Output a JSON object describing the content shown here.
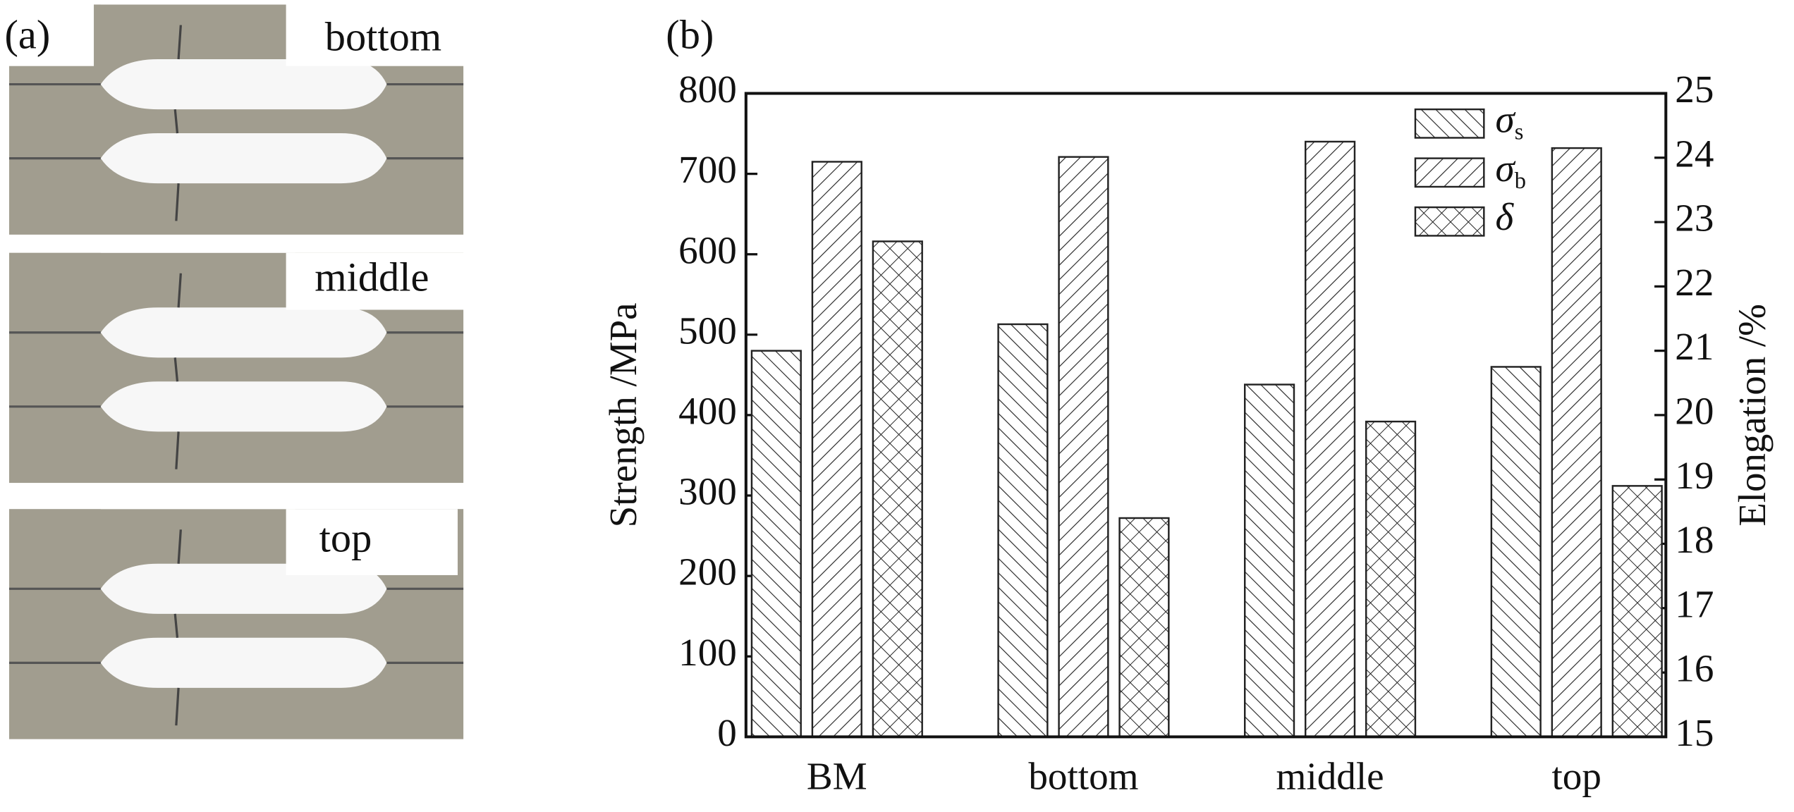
{
  "panel_a": {
    "label": "(a)",
    "photo_labels": [
      "bottom",
      "middle",
      "top"
    ]
  },
  "chart_data": {
    "type": "bar",
    "panel_label": "(b)",
    "categories": [
      "BM",
      "bottom",
      "middle",
      "top"
    ],
    "series": [
      {
        "name": "σs",
        "pattern": "backslash",
        "color": "#222222",
        "values": [
          480,
          513,
          438,
          460
        ]
      },
      {
        "name": "σb",
        "pattern": "slash",
        "color": "#222222",
        "values": [
          715,
          721,
          740,
          732
        ]
      },
      {
        "name": "δ",
        "pattern": "cross",
        "color": "#222222",
        "axis": "y2",
        "values": [
          22.7,
          18.4,
          19.9,
          18.9
        ]
      }
    ],
    "y_label": "Strength /MPa",
    "y2_label": "Elongation /%",
    "ylim": [
      0,
      800
    ],
    "yticks": [
      0,
      100,
      200,
      300,
      400,
      500,
      600,
      700,
      800
    ],
    "y2lim": [
      15,
      25
    ],
    "y2ticks": [
      15,
      16,
      17,
      18,
      19,
      20,
      21,
      22,
      23,
      24,
      25
    ],
    "legend": "upper right"
  }
}
